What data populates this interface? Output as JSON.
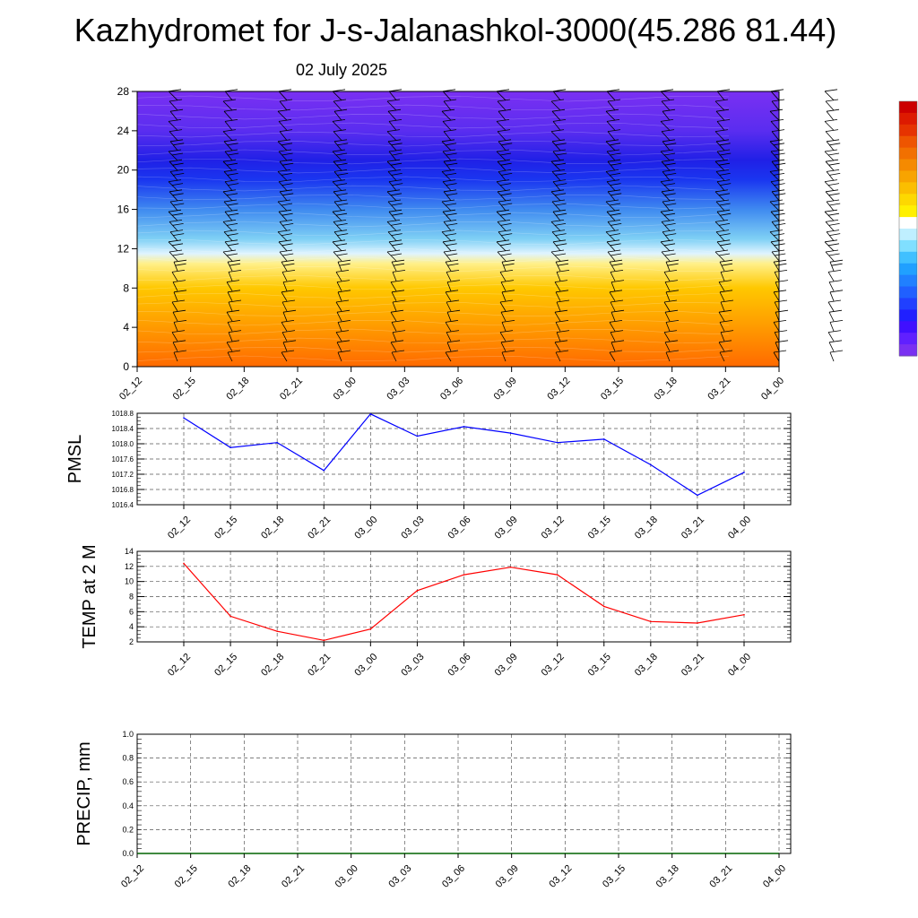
{
  "title": "Kazhydromet for J-s-Jalanashkol-3000(45.286 81.44)",
  "subtitle": "02 July 2025",
  "time_labels": [
    "02_12",
    "02_15",
    "02_18",
    "02_21",
    "03_00",
    "03_03",
    "03_06",
    "03_09",
    "03_12",
    "03_15",
    "03_18",
    "03_21",
    "04_00"
  ],
  "chart_data": [
    {
      "id": "cross-section",
      "type": "heatmap",
      "x": [
        "02_12",
        "02_15",
        "02_18",
        "02_21",
        "03_00",
        "03_03",
        "03_06",
        "03_09",
        "03_12",
        "03_15",
        "03_18",
        "03_21",
        "04_00"
      ],
      "y_ticks": [
        0,
        4,
        8,
        12,
        16,
        20,
        24,
        28
      ],
      "ylim": [
        0,
        28
      ],
      "color_gradient": [
        {
          "y": 0,
          "color": "#ff6a00"
        },
        {
          "y": 4,
          "color": "#ff9a00"
        },
        {
          "y": 8,
          "color": "#ffc800"
        },
        {
          "y": 10.5,
          "color": "#fff08a"
        },
        {
          "y": 11.5,
          "color": "#dff4ff"
        },
        {
          "y": 13,
          "color": "#7fd0f5"
        },
        {
          "y": 16,
          "color": "#3f8af0"
        },
        {
          "y": 19,
          "color": "#1a36f0"
        },
        {
          "y": 21,
          "color": "#2020e6"
        },
        {
          "y": 24,
          "color": "#5a2df0"
        },
        {
          "y": 28,
          "color": "#7a30f2"
        }
      ],
      "wind_barbs": true
    },
    {
      "id": "pmsl",
      "type": "line",
      "ylabel": "PMSL",
      "x": [
        "02_12",
        "02_15",
        "02_18",
        "02_21",
        "03_00",
        "03_03",
        "03_06",
        "03_09",
        "03_12",
        "03_15",
        "03_18",
        "03_21",
        "04_00"
      ],
      "y_ticks": [
        "1016.4",
        "1016.8",
        "1017.2",
        "1017.6",
        "1018.0",
        "1018.4",
        "1018.8"
      ],
      "ylim": [
        1016.4,
        1018.8
      ],
      "grid": true,
      "series": [
        {
          "color": "#0000ff",
          "values": [
            1018.68,
            1017.9,
            1018.03,
            1017.3,
            1018.78,
            1018.2,
            1018.45,
            1018.28,
            1018.03,
            1018.12,
            1017.45,
            1016.65,
            1017.25
          ]
        }
      ]
    },
    {
      "id": "temp",
      "type": "line",
      "ylabel": "TEMP at 2 M",
      "x": [
        "02_12",
        "02_15",
        "02_18",
        "02_21",
        "03_00",
        "03_03",
        "03_06",
        "03_09",
        "03_12",
        "03_15",
        "03_18",
        "03_21",
        "04_00"
      ],
      "y_ticks": [
        "2",
        "4",
        "6",
        "8",
        "10",
        "12",
        "14"
      ],
      "ylim": [
        2,
        14
      ],
      "grid": true,
      "series": [
        {
          "color": "#ff0000",
          "values": [
            12.4,
            5.4,
            3.4,
            2.2,
            3.7,
            8.8,
            10.9,
            11.9,
            10.9,
            6.7,
            4.7,
            4.5,
            5.6
          ]
        }
      ]
    },
    {
      "id": "precip",
      "type": "line",
      "ylabel": "PRECIP, mm",
      "x": [
        "02_12",
        "02_15",
        "02_18",
        "02_21",
        "03_00",
        "03_03",
        "03_06",
        "03_09",
        "03_12",
        "03_15",
        "03_18",
        "03_21",
        "04_00"
      ],
      "y_ticks": [
        "0.0",
        "0.2",
        "0.4",
        "0.6",
        "0.8",
        "1.0"
      ],
      "ylim": [
        0,
        1
      ],
      "grid": true,
      "series": [
        {
          "color": "#006400",
          "values": [
            0,
            0,
            0,
            0,
            0,
            0,
            0,
            0,
            0,
            0,
            0,
            0,
            0
          ]
        }
      ]
    }
  ],
  "colorbar": {
    "colors": [
      "#cc0000",
      "#dd1a00",
      "#e63300",
      "#ee5500",
      "#f27000",
      "#f58a00",
      "#f8a400",
      "#fbbe00",
      "#fdd800",
      "#fff000",
      "#ffffff",
      "#bfefff",
      "#80dfff",
      "#40c0ff",
      "#20a0ff",
      "#2080ff",
      "#2060ff",
      "#2040ff",
      "#2020ff",
      "#4010ff",
      "#6020ff",
      "#7a30f2"
    ]
  }
}
